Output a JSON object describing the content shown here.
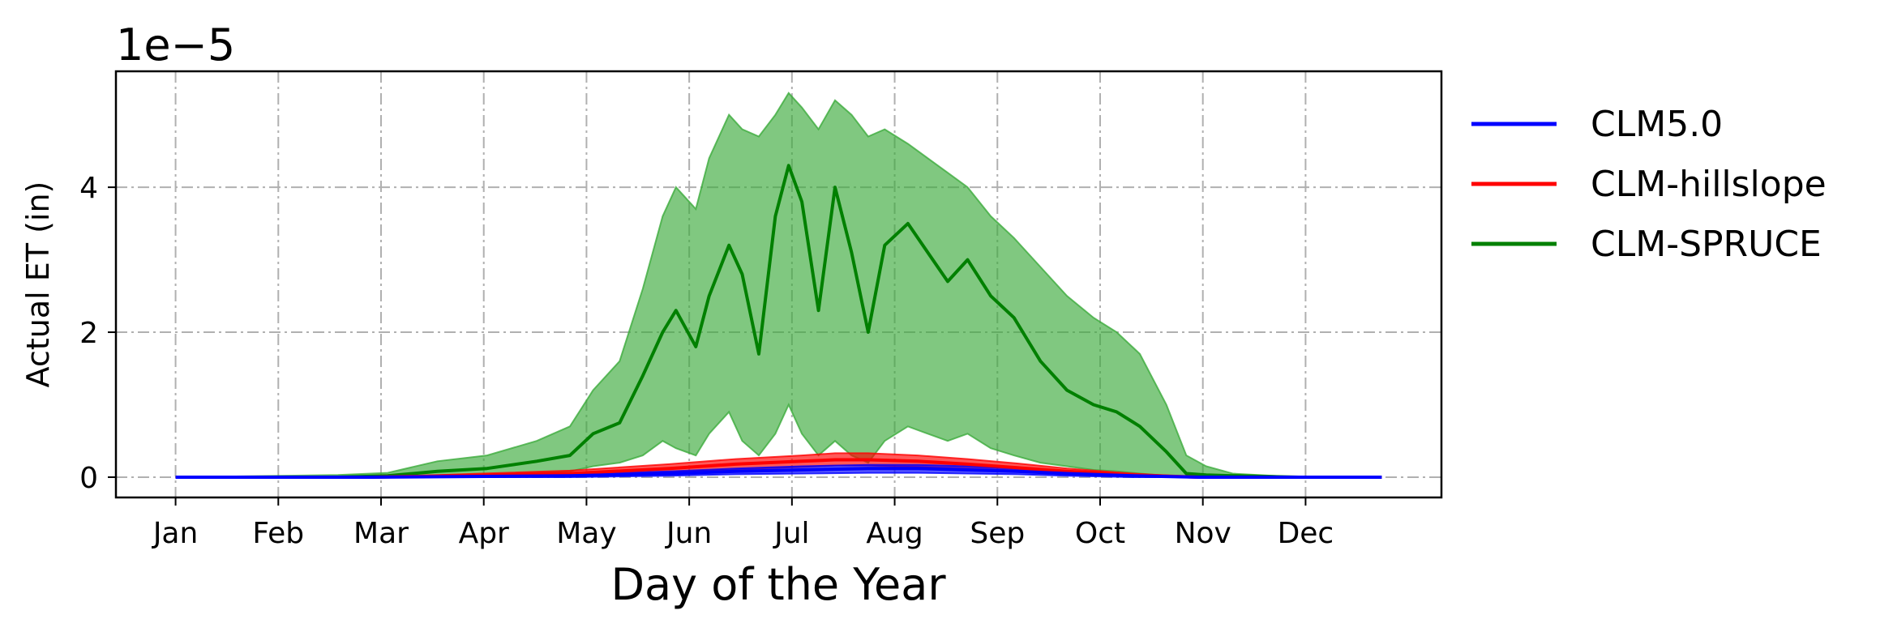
{
  "chart_data": {
    "type": "line",
    "title": "",
    "xlabel": "Day of the Year",
    "ylabel": "Actual ET (in)",
    "offset_text": "1e−5",
    "x_ticks": [
      {
        "day": 1,
        "label": "Jan"
      },
      {
        "day": 32,
        "label": "Feb"
      },
      {
        "day": 63,
        "label": "Mar"
      },
      {
        "day": 94,
        "label": "Apr"
      },
      {
        "day": 125,
        "label": "May"
      },
      {
        "day": 156,
        "label": "Jun"
      },
      {
        "day": 187,
        "label": "Jul"
      },
      {
        "day": 218,
        "label": "Aug"
      },
      {
        "day": 249,
        "label": "Sep"
      },
      {
        "day": 280,
        "label": "Oct"
      },
      {
        "day": 311,
        "label": "Nov"
      },
      {
        "day": 342,
        "label": "Dec"
      }
    ],
    "y_ticks": [
      {
        "value": 0,
        "label": "0"
      },
      {
        "value": 2,
        "label": "2"
      },
      {
        "value": 4,
        "label": "4"
      }
    ],
    "xlim": [
      -17,
      383
    ],
    "ylim": [
      -0.28,
      5.6
    ],
    "grid": true,
    "legend_position": "outside-right",
    "series": [
      {
        "name": "CLM5.0",
        "color": "#0000ff",
        "x": [
          1,
          60,
          120,
          150,
          170,
          190,
          210,
          225,
          240,
          255,
          270,
          290,
          310,
          365
        ],
        "values": [
          0,
          0,
          0.02,
          0.05,
          0.08,
          0.1,
          0.12,
          0.12,
          0.1,
          0.08,
          0.05,
          0.02,
          0,
          0
        ],
        "band_lower": [
          0,
          0,
          0,
          0.02,
          0.04,
          0.05,
          0.06,
          0.06,
          0.05,
          0.04,
          0.02,
          0,
          0,
          0
        ],
        "band_upper": [
          0,
          0,
          0.04,
          0.08,
          0.12,
          0.15,
          0.17,
          0.17,
          0.15,
          0.12,
          0.08,
          0.04,
          0,
          0
        ]
      },
      {
        "name": "CLM-hillslope",
        "color": "#ff0000",
        "x": [
          1,
          60,
          120,
          150,
          170,
          190,
          200,
          210,
          225,
          240,
          255,
          270,
          290,
          310,
          365
        ],
        "values": [
          0,
          0,
          0.05,
          0.12,
          0.18,
          0.22,
          0.24,
          0.24,
          0.22,
          0.18,
          0.13,
          0.08,
          0.03,
          0,
          0
        ],
        "band_lower": [
          0,
          0,
          0.02,
          0.07,
          0.11,
          0.14,
          0.16,
          0.16,
          0.14,
          0.11,
          0.08,
          0.04,
          0.01,
          0,
          0
        ],
        "band_upper": [
          0,
          0,
          0.09,
          0.18,
          0.25,
          0.3,
          0.33,
          0.33,
          0.3,
          0.25,
          0.19,
          0.12,
          0.05,
          0,
          0
        ]
      },
      {
        "name": "CLM-SPRUCE",
        "color": "#008000",
        "band_color": "#3cab3c",
        "x": [
          1,
          50,
          65,
          80,
          95,
          110,
          120,
          127,
          135,
          142,
          148,
          152,
          158,
          162,
          168,
          172,
          177,
          182,
          186,
          190,
          195,
          200,
          205,
          210,
          215,
          222,
          228,
          234,
          240,
          247,
          254,
          262,
          270,
          278,
          285,
          292,
          300,
          306,
          312,
          320,
          340,
          365
        ],
        "values": [
          0,
          0,
          0.02,
          0.08,
          0.12,
          0.22,
          0.3,
          0.6,
          0.75,
          1.4,
          2.0,
          2.3,
          1.8,
          2.5,
          3.2,
          2.8,
          1.7,
          3.6,
          4.3,
          3.8,
          2.3,
          4.0,
          3.1,
          2.0,
          3.2,
          3.5,
          3.1,
          2.7,
          3.0,
          2.5,
          2.2,
          1.6,
          1.2,
          1.0,
          0.9,
          0.7,
          0.35,
          0.05,
          0.03,
          0.02,
          0,
          0
        ],
        "band_lower": [
          0,
          0,
          0,
          0.01,
          0.03,
          0.05,
          0.08,
          0.15,
          0.2,
          0.3,
          0.5,
          0.4,
          0.3,
          0.6,
          0.9,
          0.5,
          0.3,
          0.6,
          1.0,
          0.6,
          0.3,
          0.5,
          0.3,
          0.2,
          0.5,
          0.7,
          0.6,
          0.5,
          0.6,
          0.4,
          0.3,
          0.2,
          0.15,
          0.1,
          0.08,
          0.05,
          0.02,
          0,
          0,
          0,
          0,
          0
        ],
        "band_upper": [
          0,
          0.03,
          0.06,
          0.22,
          0.3,
          0.5,
          0.7,
          1.2,
          1.6,
          2.6,
          3.6,
          4.0,
          3.7,
          4.4,
          5.0,
          4.8,
          4.7,
          5.0,
          5.3,
          5.1,
          4.8,
          5.2,
          5.0,
          4.7,
          4.8,
          4.6,
          4.4,
          4.2,
          4.0,
          3.6,
          3.3,
          2.9,
          2.5,
          2.2,
          2.0,
          1.7,
          1.0,
          0.3,
          0.15,
          0.05,
          0,
          0
        ]
      }
    ]
  }
}
